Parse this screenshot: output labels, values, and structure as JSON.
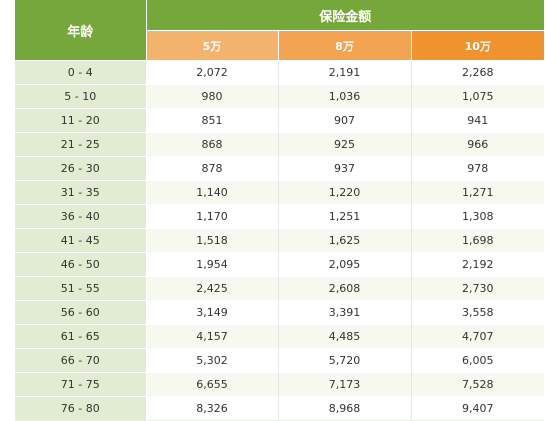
{
  "header": {
    "age_label": "年龄",
    "amount_label": "保险金额",
    "columns": [
      "5万",
      "8万",
      "10万"
    ]
  },
  "colors": {
    "header_green": "#76a73a",
    "age_cell_bg": "#e2ecd2",
    "col1_orange": "#f4b36c",
    "col2_orange": "#f3a452",
    "col3_orange": "#f0922e"
  },
  "rows": [
    {
      "age": "0 - 4",
      "v": [
        "2,072",
        "2,191",
        "2,268"
      ]
    },
    {
      "age": "5 - 10",
      "v": [
        "980",
        "1,036",
        "1,075"
      ]
    },
    {
      "age": "11 - 20",
      "v": [
        "851",
        "907",
        "941"
      ]
    },
    {
      "age": "21 - 25",
      "v": [
        "868",
        "925",
        "966"
      ]
    },
    {
      "age": "26 - 30",
      "v": [
        "878",
        "937",
        "978"
      ]
    },
    {
      "age": "31 - 35",
      "v": [
        "1,140",
        "1,220",
        "1,271"
      ]
    },
    {
      "age": "36 - 40",
      "v": [
        "1,170",
        "1,251",
        "1,308"
      ]
    },
    {
      "age": "41 - 45",
      "v": [
        "1,518",
        "1,625",
        "1,698"
      ]
    },
    {
      "age": "46 - 50",
      "v": [
        "1,954",
        "2,095",
        "2,192"
      ]
    },
    {
      "age": "51 - 55",
      "v": [
        "2,425",
        "2,608",
        "2,730"
      ]
    },
    {
      "age": "56 - 60",
      "v": [
        "3,149",
        "3,391",
        "3,558"
      ]
    },
    {
      "age": "61 - 65",
      "v": [
        "4,157",
        "4,485",
        "4,707"
      ]
    },
    {
      "age": "66 - 70",
      "v": [
        "5,302",
        "5,720",
        "6,005"
      ]
    },
    {
      "age": "71 - 75",
      "v": [
        "6,655",
        "7,173",
        "7,528"
      ]
    },
    {
      "age": "76 - 80",
      "v": [
        "8,326",
        "8,968",
        "9,407"
      ]
    }
  ]
}
